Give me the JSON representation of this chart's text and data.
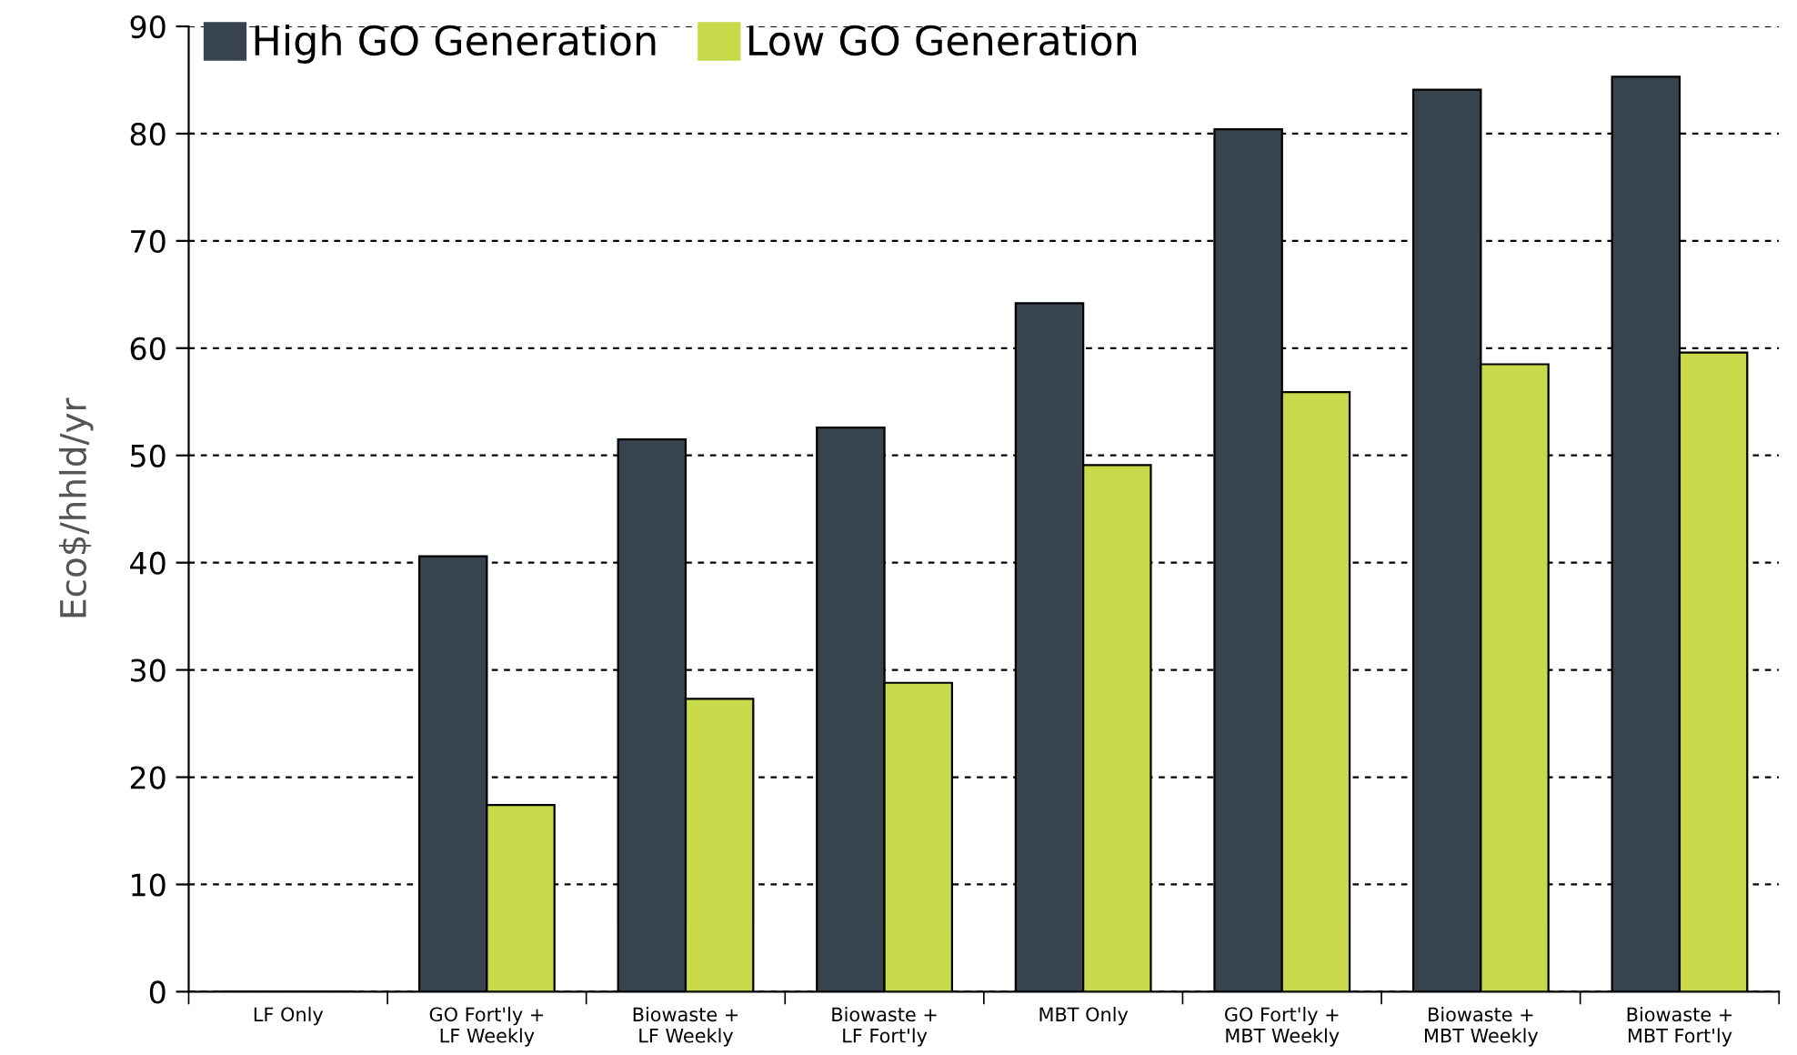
{
  "chart_data": {
    "type": "bar",
    "categories": [
      "LF Only",
      "GO Fort'ly +\nLF Weekly",
      "Biowaste +\nLF Weekly",
      "Biowaste +\nLF Fort'ly",
      "MBT Only",
      "GO Fort'ly +\nMBT Weekly",
      "Biowaste +\nMBT Weekly",
      "Biowaste +\nMBT Fort'ly"
    ],
    "series": [
      {
        "name": "High GO Generation",
        "color": "#37444d",
        "values": [
          0,
          40.6,
          51.5,
          52.6,
          64.2,
          80.4,
          84.1,
          85.3
        ]
      },
      {
        "name": "Low GO Generation",
        "color": "#c8da4a",
        "values": [
          0,
          17.4,
          27.3,
          28.8,
          49.1,
          55.9,
          58.5,
          59.6
        ]
      }
    ],
    "ylabel": "Eco$/hhld/yr",
    "ylim": [
      0,
      90
    ],
    "yticks": [
      0,
      10,
      20,
      30,
      40,
      50,
      60,
      70,
      80,
      90
    ],
    "grid": "y",
    "legend": "top left"
  }
}
